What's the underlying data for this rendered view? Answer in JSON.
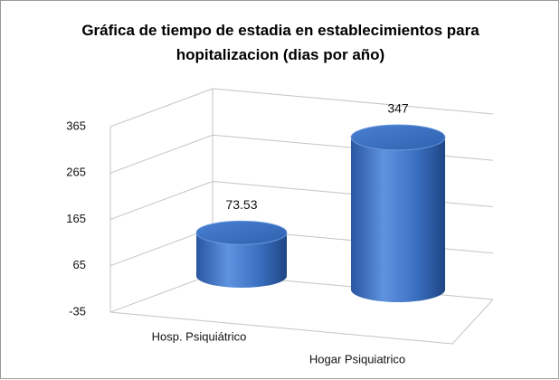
{
  "chart_data": {
    "type": "bar3d-cylinder",
    "title": "Gráfica de tiempo de estadia en establecimientos para hopitalizacion (dias por año)",
    "categories": [
      "Hosp. Psiquiátrico",
      "Hogar Psiquiatrico"
    ],
    "values": [
      73.53,
      347
    ],
    "color": "#3a6fc0",
    "ylim": [
      -35,
      365
    ],
    "yticks": [
      -35,
      65,
      165,
      265,
      365
    ],
    "grid": true
  }
}
